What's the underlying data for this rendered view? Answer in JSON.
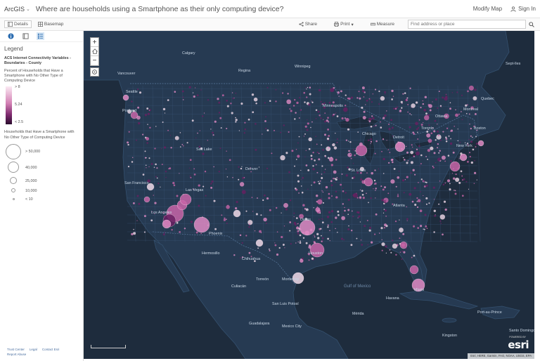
{
  "header": {
    "brand": "ArcGIS",
    "title": "Where are households using a Smartphone as their only computing device?",
    "modify_map": "Modify Map",
    "sign_in": "Sign In"
  },
  "toolbar": {
    "details": "Details",
    "basemap": "Basemap",
    "share": "Share",
    "print": "Print",
    "measure": "Measure",
    "search_placeholder": "Find address or place"
  },
  "legend": {
    "title": "Legend",
    "layer_name": "ACS Internet Connectivity Variables - Boundaries - County",
    "color_field": "Percent of Households that Have a Smartphone with No Other Type of Computing Device",
    "ramp_labels": [
      "> 8",
      "5.24",
      "< 2.5"
    ],
    "size_field": "Households that Have a Smartphone with No Other Type of Computing Device",
    "size_labels": [
      "> 50,000",
      "40,000",
      "25,000",
      "10,000",
      "< 10"
    ]
  },
  "footer_links": [
    "Trust Center",
    "Legal",
    "Contact Esri",
    "Report Abuse"
  ],
  "map": {
    "attribution": "Esri, HERE, Garmin, FAO, NOAA, USGS, EPA",
    "powered_by": "POWERED BY",
    "esri": "esri",
    "labels": {
      "calgary": "Calgary",
      "winnipeg": "Winnipeg",
      "regina": "Regina",
      "vancouver": "Vancouver",
      "seattle": "Seattle",
      "portland": "Portland",
      "septiles": "Sept-Iles",
      "quebec": "Quebec",
      "montreal": "Montreal",
      "ottawa": "Ottawa",
      "toronto": "Toronto",
      "detroit": "Detroit",
      "boston": "Boston",
      "newyork": "New York",
      "chicago": "Chicago",
      "saltlake": "Salt Lake",
      "denver": "Denver",
      "sanfrancisco": "San Francisco",
      "lasvegas": "Las Vegas",
      "losangeles": "Los Angeles",
      "phoenix": "Phoenix",
      "hermosillo": "Hermosillo",
      "chihuahua": "Chihuahua",
      "dallas": "Dallas",
      "houston": "Houston",
      "torreon": "Torreón",
      "monterrey": "Monterrey",
      "culiacan": "Culiacán",
      "sanluispotosi": "San Luis Potosí",
      "guadalajara": "Guadalajara",
      "mexicocity": "Mexico City",
      "gulf": "Gulf of Mexico",
      "havana": "Havana",
      "merida": "Mérida",
      "portauprince": "Port-au-Prince",
      "kingston": "Kingston",
      "santodomingo": "Santo Domingo",
      "miami": "Miami",
      "atlanta": "Atlanta",
      "stlouis": "St. Louis",
      "minneapolis": "Minneapolis"
    }
  },
  "colors": {
    "map_bg": "#1e2c3d",
    "land": "#263a52",
    "bubble_light": "#f1dbe9",
    "bubble_mid": "#c865a8",
    "bubble_dark": "#6a1f62",
    "bubble_bright": "#e08bc4"
  }
}
